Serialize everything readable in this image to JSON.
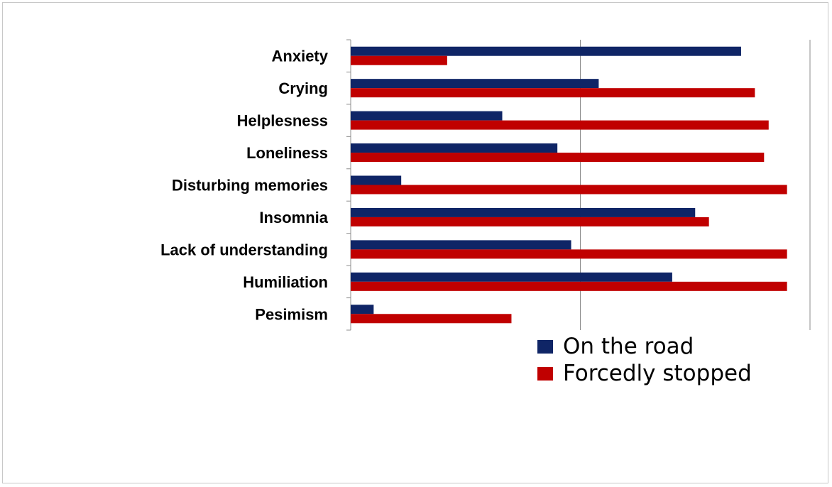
{
  "chart_data": {
    "type": "bar",
    "orientation": "horizontal",
    "categories": [
      "Anxiety",
      "Crying",
      "Helplesness",
      "Loneliness",
      "Disturbing memories",
      "Insomnia",
      "Lack of understanding",
      "Humiliation",
      "Pesimism"
    ],
    "series": [
      {
        "name": "On the road",
        "color": "#0f2566",
        "values": [
          85,
          54,
          33,
          45,
          11,
          75,
          48,
          70,
          5
        ]
      },
      {
        "name": "Forcedly stopped",
        "color": "#c00000",
        "values": [
          21,
          88,
          91,
          90,
          95,
          78,
          95,
          95,
          35
        ]
      }
    ],
    "xlim": [
      0,
      100
    ],
    "x_tick_labels_shown": false,
    "grid": "vertical major gridlines",
    "legend_position": "bottom-right"
  }
}
